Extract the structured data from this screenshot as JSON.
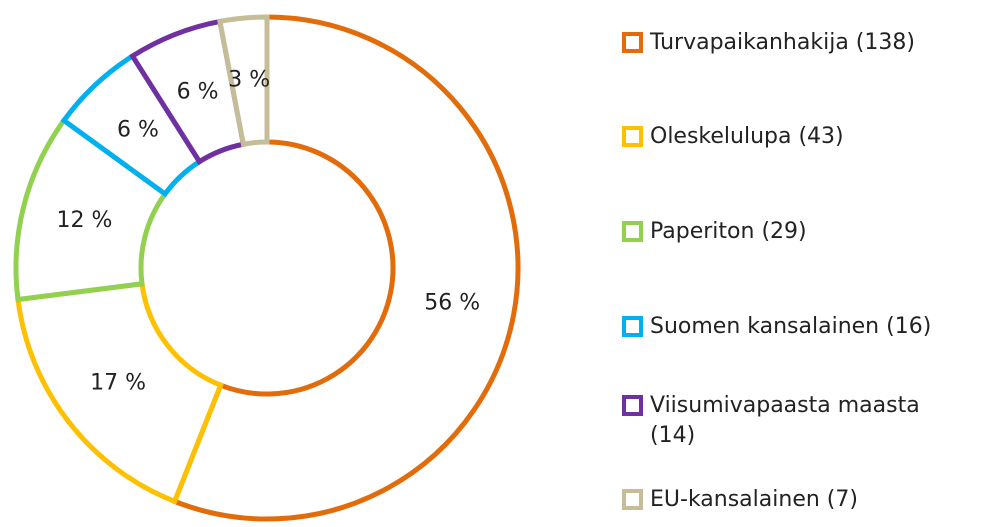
{
  "chart_data": {
    "type": "donut",
    "categories": [
      "Turvapaikanhakija (138)",
      "Oleskelulupa (43)",
      "Paperiton (29)",
      "Suomen kansalainen (16)",
      "Viisumivapaasta maasta (14)",
      "EU-kansalainen (7)"
    ],
    "values": [
      56,
      17,
      12,
      6,
      6,
      3
    ],
    "value_labels": [
      "56 %",
      "17 %",
      "12 %",
      "6 %",
      "6 %",
      "3 %"
    ],
    "colors": [
      "#e36c0a",
      "#ffc000",
      "#92d050",
      "#00b0f0",
      "#7030a0",
      "#c4bd97"
    ]
  }
}
